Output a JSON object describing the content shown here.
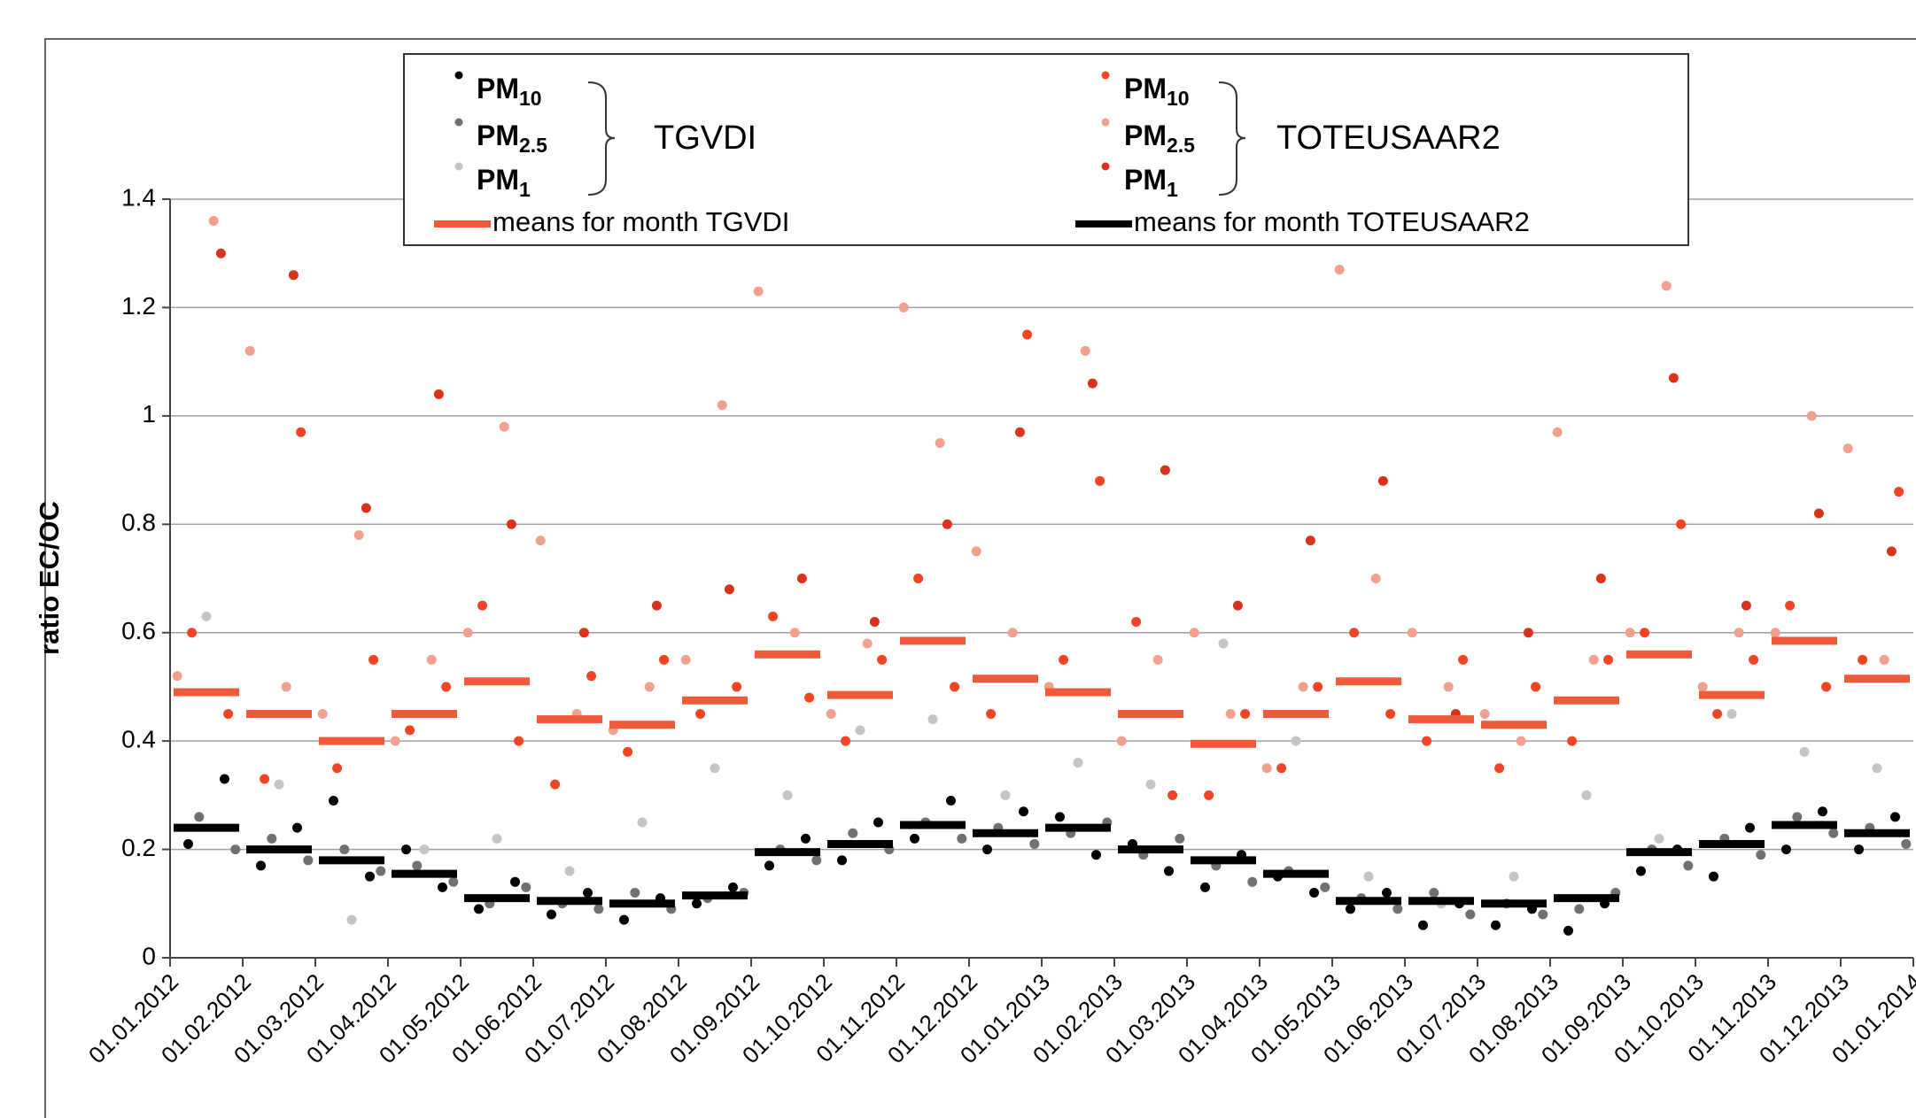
{
  "chart_data": {
    "type": "scatter",
    "y_label": "ratio EC/OC",
    "xlim": [
      0,
      24
    ],
    "ylim": [
      0,
      1.4
    ],
    "yticks": [
      0,
      0.2,
      0.4,
      0.6,
      0.8,
      1,
      1.2,
      1.4
    ],
    "xticks": [
      {
        "value": 0,
        "label": "01.01.2012"
      },
      {
        "value": 1,
        "label": "01.02.2012"
      },
      {
        "value": 2,
        "label": "01.03.2012"
      },
      {
        "value": 3,
        "label": "01.04.2012"
      },
      {
        "value": 4,
        "label": "01.05.2012"
      },
      {
        "value": 5,
        "label": "01.06.2012"
      },
      {
        "value": 6,
        "label": "01.07.2012"
      },
      {
        "value": 7,
        "label": "01.08.2012"
      },
      {
        "value": 8,
        "label": "01.09.2012"
      },
      {
        "value": 9,
        "label": "01.10.2012"
      },
      {
        "value": 10,
        "label": "01.11.2012"
      },
      {
        "value": 11,
        "label": "01.12.2012"
      },
      {
        "value": 12,
        "label": "01.01.2013"
      },
      {
        "value": 13,
        "label": "01.02.2013"
      },
      {
        "value": 14,
        "label": "01.03.2013"
      },
      {
        "value": 15,
        "label": "01.04.2013"
      },
      {
        "value": 16,
        "label": "01.05.2013"
      },
      {
        "value": 17,
        "label": "01.06.2013"
      },
      {
        "value": 18,
        "label": "01.07.2013"
      },
      {
        "value": 19,
        "label": "01.08.2013"
      },
      {
        "value": 20,
        "label": "01.09.2013"
      },
      {
        "value": 21,
        "label": "01.10.2013"
      },
      {
        "value": 22,
        "label": "01.11.2013"
      },
      {
        "value": 23,
        "label": "01.12.2013"
      },
      {
        "value": 24,
        "label": "01.01.2014"
      }
    ],
    "grid": true,
    "legend_groups": [
      "TGVDI",
      "TOTEUSAAR2"
    ],
    "series": [
      {
        "name": "PM10",
        "color": "#000000",
        "x": [
          0.25,
          0.75,
          1.25,
          1.75,
          2.25,
          2.75,
          3.25,
          3.75,
          4.25,
          4.75,
          5.25,
          5.75,
          6.25,
          6.75,
          7.25,
          7.75,
          8.25,
          8.75,
          9.25,
          9.75,
          10.25,
          10.75,
          11.25,
          11.75,
          12.25,
          12.75,
          13.25,
          13.75,
          14.25,
          14.75,
          15.25,
          15.75,
          16.25,
          16.75,
          17.25,
          17.75,
          18.25,
          18.75,
          19.25,
          19.75,
          20.25,
          20.75,
          21.25,
          21.75,
          22.25,
          22.75,
          23.25,
          23.75
        ],
        "values": [
          0.21,
          0.33,
          0.17,
          0.24,
          0.29,
          0.15,
          0.2,
          0.13,
          0.09,
          0.14,
          0.08,
          0.12,
          0.07,
          0.11,
          0.1,
          0.13,
          0.17,
          0.22,
          0.18,
          0.25,
          0.22,
          0.29,
          0.2,
          0.27,
          0.26,
          0.19,
          0.21,
          0.16,
          0.13,
          0.19,
          0.15,
          0.12,
          0.09,
          0.12,
          0.06,
          0.1,
          0.06,
          0.09,
          0.05,
          0.1,
          0.16,
          0.2,
          0.15,
          0.24,
          0.2,
          0.27,
          0.2,
          0.26
        ]
      },
      {
        "name": "PM2.5",
        "color": "#707070",
        "x": [
          0.4,
          0.9,
          1.4,
          1.9,
          2.4,
          2.9,
          3.4,
          3.9,
          4.4,
          4.9,
          5.4,
          5.9,
          6.4,
          6.9,
          7.4,
          7.9,
          8.4,
          8.9,
          9.4,
          9.9,
          10.4,
          10.9,
          11.4,
          11.9,
          12.4,
          12.9,
          13.4,
          13.9,
          14.4,
          14.9,
          15.4,
          15.9,
          16.4,
          16.9,
          17.4,
          17.9,
          18.4,
          18.9,
          19.4,
          19.9,
          20.4,
          20.9,
          21.4,
          21.9,
          22.4,
          22.9,
          23.4,
          23.9
        ],
        "values": [
          0.26,
          0.2,
          0.22,
          0.18,
          0.2,
          0.16,
          0.17,
          0.14,
          0.1,
          0.13,
          0.1,
          0.09,
          0.12,
          0.09,
          0.11,
          0.12,
          0.2,
          0.18,
          0.23,
          0.2,
          0.25,
          0.22,
          0.24,
          0.21,
          0.23,
          0.25,
          0.19,
          0.22,
          0.17,
          0.14,
          0.16,
          0.13,
          0.11,
          0.09,
          0.12,
          0.08,
          0.1,
          0.08,
          0.09,
          0.12,
          0.2,
          0.17,
          0.22,
          0.19,
          0.26,
          0.23,
          0.24,
          0.21
        ]
      },
      {
        "name": "PM1",
        "color": "#c4c4c4",
        "x": [
          0.5,
          1.5,
          2.5,
          3.5,
          4.5,
          5.5,
          6.5,
          7.5,
          8.5,
          9.5,
          10.5,
          11.5,
          12.5,
          13.5,
          14.5,
          15.5,
          16.5,
          17.5,
          18.5,
          19.5,
          20.5,
          21.5,
          22.5,
          23.5
        ],
        "values": [
          0.63,
          0.32,
          0.07,
          0.2,
          0.22,
          0.16,
          0.25,
          0.35,
          0.3,
          0.42,
          0.44,
          0.3,
          0.36,
          0.32,
          0.58,
          0.4,
          0.15,
          0.1,
          0.15,
          0.3,
          0.22,
          0.45,
          0.38,
          0.35
        ]
      },
      {
        "name": "PM10",
        "color": "#f04424",
        "x": [
          0.3,
          0.8,
          1.3,
          1.8,
          2.3,
          2.8,
          3.3,
          3.8,
          4.3,
          4.8,
          5.3,
          5.8,
          6.3,
          6.8,
          7.3,
          7.8,
          8.3,
          8.8,
          9.3,
          9.8,
          10.3,
          10.8,
          11.3,
          11.8,
          12.3,
          12.8,
          13.3,
          13.8,
          14.3,
          14.8,
          15.3,
          15.8,
          16.3,
          16.8,
          17.3,
          17.8,
          18.3,
          18.8,
          19.3,
          19.8,
          20.3,
          20.8,
          21.3,
          21.8,
          22.3,
          22.8,
          23.3,
          23.8
        ],
        "values": [
          0.6,
          0.45,
          0.33,
          0.97,
          0.35,
          0.55,
          0.42,
          0.5,
          0.65,
          0.4,
          0.32,
          0.52,
          0.38,
          0.55,
          0.45,
          0.5,
          0.63,
          0.48,
          0.4,
          0.55,
          0.7,
          0.5,
          0.45,
          1.15,
          0.55,
          0.88,
          0.62,
          0.3,
          0.3,
          0.45,
          0.35,
          0.5,
          0.6,
          0.45,
          0.4,
          0.55,
          0.35,
          0.5,
          0.4,
          0.55,
          0.6,
          0.8,
          0.45,
          0.55,
          0.65,
          0.5,
          0.55,
          0.86
        ]
      },
      {
        "name": "PM2.5",
        "color": "#f2a08e",
        "x": [
          0.6,
          0.1,
          1.6,
          1.1,
          2.6,
          2.1,
          3.6,
          3.1,
          4.6,
          4.1,
          5.6,
          5.1,
          6.6,
          6.1,
          7.6,
          7.1,
          8.6,
          8.1,
          9.6,
          9.1,
          10.6,
          10.1,
          11.6,
          11.1,
          12.6,
          12.1,
          13.6,
          13.1,
          14.6,
          14.1,
          15.6,
          15.1,
          16.6,
          16.1,
          17.6,
          17.1,
          18.6,
          18.1,
          19.6,
          19.1,
          20.6,
          20.1,
          21.6,
          21.1,
          22.6,
          22.1,
          23.6,
          23.1
        ],
        "values": [
          1.36,
          0.52,
          0.5,
          1.12,
          0.78,
          0.45,
          0.55,
          0.4,
          0.98,
          0.6,
          0.45,
          0.77,
          0.5,
          0.42,
          1.02,
          0.55,
          0.6,
          1.23,
          0.58,
          0.45,
          0.95,
          1.2,
          0.6,
          0.75,
          1.12,
          0.5,
          0.55,
          0.4,
          0.45,
          0.6,
          0.5,
          0.35,
          0.7,
          1.27,
          0.5,
          0.6,
          0.4,
          0.45,
          0.55,
          0.97,
          1.24,
          0.6,
          0.6,
          0.5,
          1.0,
          0.6,
          0.55,
          0.94
        ]
      },
      {
        "name": "PM1",
        "color": "#d8341c",
        "x": [
          0.7,
          1.7,
          2.7,
          3.7,
          4.7,
          5.7,
          6.7,
          7.7,
          8.7,
          9.7,
          10.7,
          11.7,
          12.7,
          13.7,
          14.7,
          15.7,
          16.7,
          17.7,
          18.7,
          19.7,
          20.7,
          21.7,
          22.7,
          23.7
        ],
        "values": [
          1.3,
          1.26,
          0.83,
          1.04,
          0.8,
          0.6,
          0.65,
          0.68,
          0.7,
          0.62,
          0.8,
          0.97,
          1.06,
          0.9,
          0.65,
          0.77,
          0.88,
          0.45,
          0.6,
          0.7,
          1.07,
          0.65,
          0.82,
          0.75
        ]
      }
    ],
    "means": [
      {
        "name": "means for month TGVDI",
        "color": "#f05a3a",
        "x": [
          0,
          1,
          2,
          3,
          4,
          5,
          6,
          7,
          8,
          9,
          10,
          11,
          12,
          13,
          14,
          15,
          16,
          17,
          18,
          19,
          20,
          21,
          22,
          23
        ],
        "values": [
          0.49,
          0.45,
          0.4,
          0.45,
          0.51,
          0.44,
          0.43,
          0.475,
          0.56,
          0.485,
          0.585,
          0.515,
          0.49,
          0.45,
          0.395,
          0.45,
          0.51,
          0.44,
          0.43,
          0.475,
          0.56,
          0.485,
          0.585,
          0.515
        ]
      },
      {
        "name": "means for month TOTEUSAAR2",
        "color": "#000000",
        "x": [
          0,
          1,
          2,
          3,
          4,
          5,
          6,
          7,
          8,
          9,
          10,
          11,
          12,
          13,
          14,
          15,
          16,
          17,
          18,
          19,
          20,
          21,
          22,
          23
        ],
        "values": [
          0.24,
          0.2,
          0.18,
          0.155,
          0.11,
          0.105,
          0.1,
          0.115,
          0.195,
          0.21,
          0.245,
          0.23,
          0.24,
          0.2,
          0.18,
          0.155,
          0.105,
          0.105,
          0.1,
          0.11,
          0.195,
          0.21,
          0.245,
          0.23
        ]
      }
    ]
  }
}
